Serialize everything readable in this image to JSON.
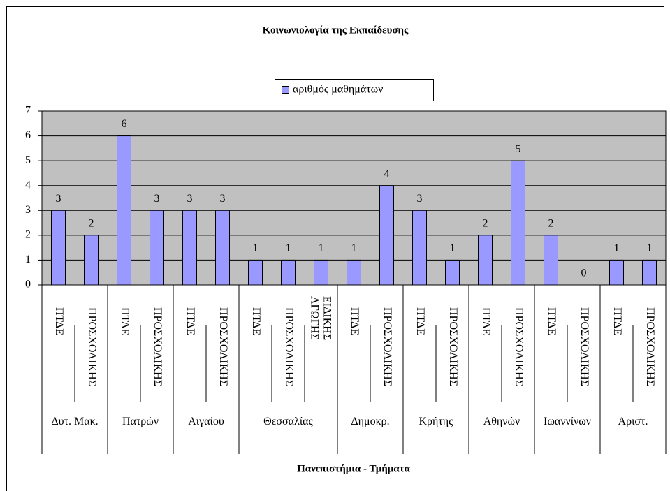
{
  "chart_data": {
    "type": "bar",
    "title": "Κοινωνιολογία της Εκπαίδευσης",
    "x_label": "Πανεπιστήμια - Τμήματα",
    "groups": [
      {
        "label": "Δυτ. Μακ.",
        "categories": [
          "ΠΤΔΕ",
          "ΠΡΟΣΧΟΛΙΚΗΣ"
        ]
      },
      {
        "label": "Πατρών",
        "categories": [
          "ΠΤΔΕ",
          "ΠΡΟΣΧΟΛΙΚΗΣ"
        ]
      },
      {
        "label": "Αιγαίου",
        "categories": [
          "ΠΤΔΕ",
          "ΠΡΟΣΧΟΛΙΚΗΣ"
        ]
      },
      {
        "label": "Θεσσαλίας",
        "categories": [
          "ΠΤΔΕ",
          "ΠΡΟΣΧΟΛΙΚΗΣ",
          "ΕΙΔΙΚΗΣ ΑΓΩΓΗΣ"
        ]
      },
      {
        "label": "Δημοκρ.",
        "categories": [
          "ΠΤΔΕ",
          "ΠΡΟΣΧΟΛΙΚΗΣ"
        ]
      },
      {
        "label": "Κρήτης",
        "categories": [
          "ΠΤΔΕ",
          "ΠΡΟΣΧΟΛΙΚΗΣ"
        ]
      },
      {
        "label": "Αθηνών",
        "categories": [
          "ΠΤΔΕ",
          "ΠΡΟΣΧΟΛΙΚΗΣ"
        ]
      },
      {
        "label": "Ιωαννίνων",
        "categories": [
          "ΠΤΔΕ",
          "ΠΡΟΣΧΟΛΙΚΗΣ"
        ]
      },
      {
        "label": "Αριστ.",
        "categories": [
          "ΠΤΔΕ",
          "ΠΡΟΣΧΟΛΙΚΗΣ"
        ]
      }
    ],
    "series": [
      {
        "name": "αριθμός μαθημάτων",
        "color": "#9999ff",
        "values": [
          3,
          2,
          6,
          3,
          3,
          3,
          1,
          1,
          1,
          1,
          4,
          3,
          1,
          2,
          5,
          2,
          0,
          1,
          1
        ]
      }
    ],
    "ylim": [
      0,
      7
    ],
    "yticks": [
      0,
      1,
      2,
      3,
      4,
      5,
      6,
      7
    ],
    "grid": true,
    "plot_background": "#c0c0c0",
    "legend_position": "top"
  }
}
